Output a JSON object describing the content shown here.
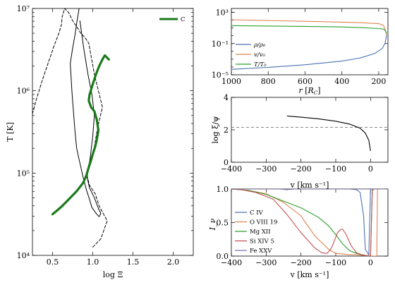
{
  "chart_data": [
    {
      "id": "left",
      "type": "line",
      "xlabel": "log Ξ",
      "ylabel": "T [K]",
      "xlim": [
        0.25,
        2.25
      ],
      "ylim_log10": [
        4,
        7
      ],
      "xticks": [
        "0.5",
        "1.0",
        "1.5",
        "2.0"
      ],
      "yticks": [
        "10⁴",
        "10⁵",
        "10⁶",
        "10⁷"
      ],
      "legend": {
        "position": "top-right",
        "entries": [
          "C"
        ]
      },
      "series": [
        {
          "name": "",
          "style": "solid",
          "color": "#000000",
          "x": [
            0.83,
            0.8,
            0.78,
            0.75,
            0.72,
            0.73,
            0.74,
            0.76,
            0.78,
            0.8,
            0.84,
            0.88,
            0.92,
            0.96,
            0.99,
            1.05,
            1.08,
            1.1,
            1.07,
            1.02,
            0.96,
            0.93,
            0.97,
            1.0,
            1.02,
            0.99,
            0.94,
            0.89,
            0.84
          ],
          "y": [
            7.0,
            6.82,
            6.68,
            6.52,
            6.33,
            6.18,
            6.0,
            5.75,
            5.5,
            5.3,
            5.12,
            4.95,
            4.8,
            4.68,
            4.58,
            4.5,
            4.47,
            4.51,
            4.57,
            4.7,
            4.82,
            4.95,
            5.2,
            5.45,
            5.7,
            5.95,
            6.2,
            6.5,
            6.85
          ]
        },
        {
          "name": "",
          "style": "dashed",
          "color": "#000000",
          "x": [
            1.0,
            1.1,
            1.18,
            1.08,
            1.03,
            0.96,
            0.92,
            0.95,
            1.02,
            1.06,
            1.12,
            1.02,
            0.95,
            0.9,
            0.85,
            0.8,
            0.75,
            0.7,
            0.65,
            0.62,
            0.61,
            0.58,
            0.52,
            0.45,
            0.38,
            0.3,
            0.25
          ],
          "y": [
            4.1,
            4.2,
            4.42,
            4.6,
            4.75,
            4.85,
            5.0,
            5.1,
            5.32,
            5.55,
            5.8,
            6.2,
            6.58,
            6.65,
            6.7,
            6.78,
            6.85,
            6.95,
            7.0,
            6.9,
            6.8,
            6.7,
            6.55,
            6.35,
            6.15,
            5.9,
            5.72
          ]
        },
        {
          "name": "C",
          "style": "thick",
          "color": "#1a7a1a",
          "x": [
            0.5,
            0.55,
            0.62,
            0.7,
            0.8,
            0.88,
            0.92,
            0.95,
            0.98,
            1.0,
            1.03,
            1.05,
            1.07,
            1.05,
            1.02,
            0.98,
            0.95,
            0.96,
            1.0,
            1.04,
            1.08,
            1.12,
            1.15,
            1.2
          ],
          "y": [
            4.5,
            4.54,
            4.6,
            4.68,
            4.78,
            4.88,
            4.97,
            5.07,
            5.16,
            5.23,
            5.32,
            5.4,
            5.52,
            5.65,
            5.75,
            5.8,
            5.88,
            5.95,
            6.08,
            6.2,
            6.3,
            6.38,
            6.43,
            6.38
          ]
        }
      ]
    },
    {
      "id": "top-right",
      "type": "line",
      "xlabel": "r [R_C]",
      "xlim": [
        1000,
        150
      ],
      "ylim_log10": [
        -5,
        3.5
      ],
      "xticks": [
        "1000",
        "800",
        "600",
        "400",
        "200"
      ],
      "yticks": [
        "10⁻⁵",
        "10⁻¹",
        "10³"
      ],
      "legend": {
        "position": "lower-left",
        "entries": [
          "ρ/ρ₀",
          "v/v₀",
          "T/T₀"
        ]
      },
      "series": [
        {
          "name": "ρ/ρ₀",
          "color": "#4c72b0",
          "x": [
            1000,
            800,
            600,
            400,
            300,
            220,
            180,
            165,
            160,
            158
          ],
          "y": [
            -4.3,
            -4.05,
            -3.72,
            -3.25,
            -2.85,
            -2.25,
            -1.6,
            -0.9,
            -0.3,
            0.2
          ]
        },
        {
          "name": "v/v₀",
          "color": "#dd8452",
          "x": [
            1000,
            800,
            600,
            400,
            300,
            200,
            175,
            165,
            158
          ],
          "y": [
            2.05,
            1.95,
            1.85,
            1.75,
            1.68,
            1.55,
            1.35,
            0.8,
            0.1
          ]
        },
        {
          "name": "T/T₀",
          "color": "#2ca02c",
          "x": [
            1000,
            800,
            600,
            400,
            300,
            200,
            175,
            165,
            160,
            158
          ],
          "y": [
            1.3,
            1.25,
            1.2,
            1.13,
            1.05,
            0.92,
            0.85,
            0.7,
            0.5,
            0.3
          ]
        }
      ]
    },
    {
      "id": "middle-right",
      "type": "line",
      "xlabel": "v [km s⁻¹]",
      "ylabel": "log ξ/ψ",
      "xlim": [
        -400,
        50
      ],
      "ylim": [
        0,
        4
      ],
      "xticks": [
        "−400",
        "−300",
        "−200",
        "−100",
        "0"
      ],
      "yticks": [
        "0",
        "2",
        "4"
      ],
      "hline": 2.15,
      "series": [
        {
          "name": "",
          "color": "#000000",
          "x": [
            -240,
            -200,
            -150,
            -100,
            -60,
            -30,
            -15,
            -5,
            0
          ],
          "y": [
            2.85,
            2.78,
            2.68,
            2.53,
            2.35,
            2.1,
            1.8,
            1.35,
            0.7
          ]
        }
      ]
    },
    {
      "id": "bottom-right",
      "type": "line",
      "xlabel": "v [km s⁻¹]",
      "ylabel": "I_ν",
      "xlim": [
        -400,
        50
      ],
      "ylim": [
        0,
        1
      ],
      "xticks": [
        "−400",
        "−300",
        "−200",
        "−100",
        "0"
      ],
      "yticks": [
        "0.0",
        "0.5",
        "1.0"
      ],
      "legend": {
        "position": "lower-left",
        "entries": [
          "C IV",
          "O VIII 19",
          "Mg XII",
          "Si XIV 5",
          "Fe XXV"
        ]
      },
      "series": [
        {
          "name": "C IV",
          "color": "#4c72b0",
          "x": [
            -400,
            -60,
            -40,
            -30,
            -20,
            -15,
            -5,
            0,
            50
          ],
          "y": [
            1,
            1,
            0.99,
            0.95,
            0.6,
            0.1,
            0.02,
            1,
            1
          ]
        },
        {
          "name": "O VIII 19",
          "color": "#dd8452",
          "x": [
            -400,
            -370,
            -340,
            -300,
            -250,
            -200,
            -160,
            -120,
            -100,
            -80,
            -60,
            -40,
            -20,
            -5,
            0,
            10,
            18,
            20,
            50
          ],
          "y": [
            1,
            0.99,
            0.97,
            0.93,
            0.8,
            0.6,
            0.3,
            0.1,
            0.04,
            0.03,
            0.02,
            0.02,
            0.01,
            0.01,
            0,
            0,
            0,
            1,
            1
          ]
        },
        {
          "name": "Mg XII",
          "color": "#2ca02c",
          "x": [
            -400,
            -350,
            -300,
            -250,
            -200,
            -150,
            -120,
            -100,
            -80,
            -60,
            -40,
            -25,
            -15,
            -5,
            0,
            5,
            10,
            50
          ],
          "y": [
            1,
            0.98,
            0.92,
            0.82,
            0.72,
            0.58,
            0.45,
            0.32,
            0.18,
            0.08,
            0.04,
            0.02,
            0.01,
            0,
            0,
            0.98,
            1,
            1
          ]
        },
        {
          "name": "Si XIV 5",
          "color": "#c44e52",
          "x": [
            -400,
            -370,
            -330,
            -280,
            -240,
            -200,
            -160,
            -140,
            -125,
            -115,
            -110,
            -95,
            -85,
            -80,
            -70,
            -55,
            -40,
            -25,
            -15,
            -5,
            0,
            5,
            50
          ],
          "y": [
            1,
            0.99,
            0.95,
            0.85,
            0.62,
            0.35,
            0.12,
            0.05,
            0.04,
            0.1,
            0.15,
            0.35,
            0.4,
            0.4,
            0.32,
            0.15,
            0.05,
            0.02,
            0.01,
            0,
            0,
            1,
            1
          ]
        },
        {
          "name": "Fe XXV",
          "color": "#8172b3",
          "x": [
            -400,
            -350,
            -300,
            -260,
            -240,
            -230,
            -220,
            -50,
            50
          ],
          "y": [
            1,
            1,
            1,
            1,
            0.99,
            0.995,
            1,
            1,
            1
          ]
        }
      ]
    }
  ]
}
